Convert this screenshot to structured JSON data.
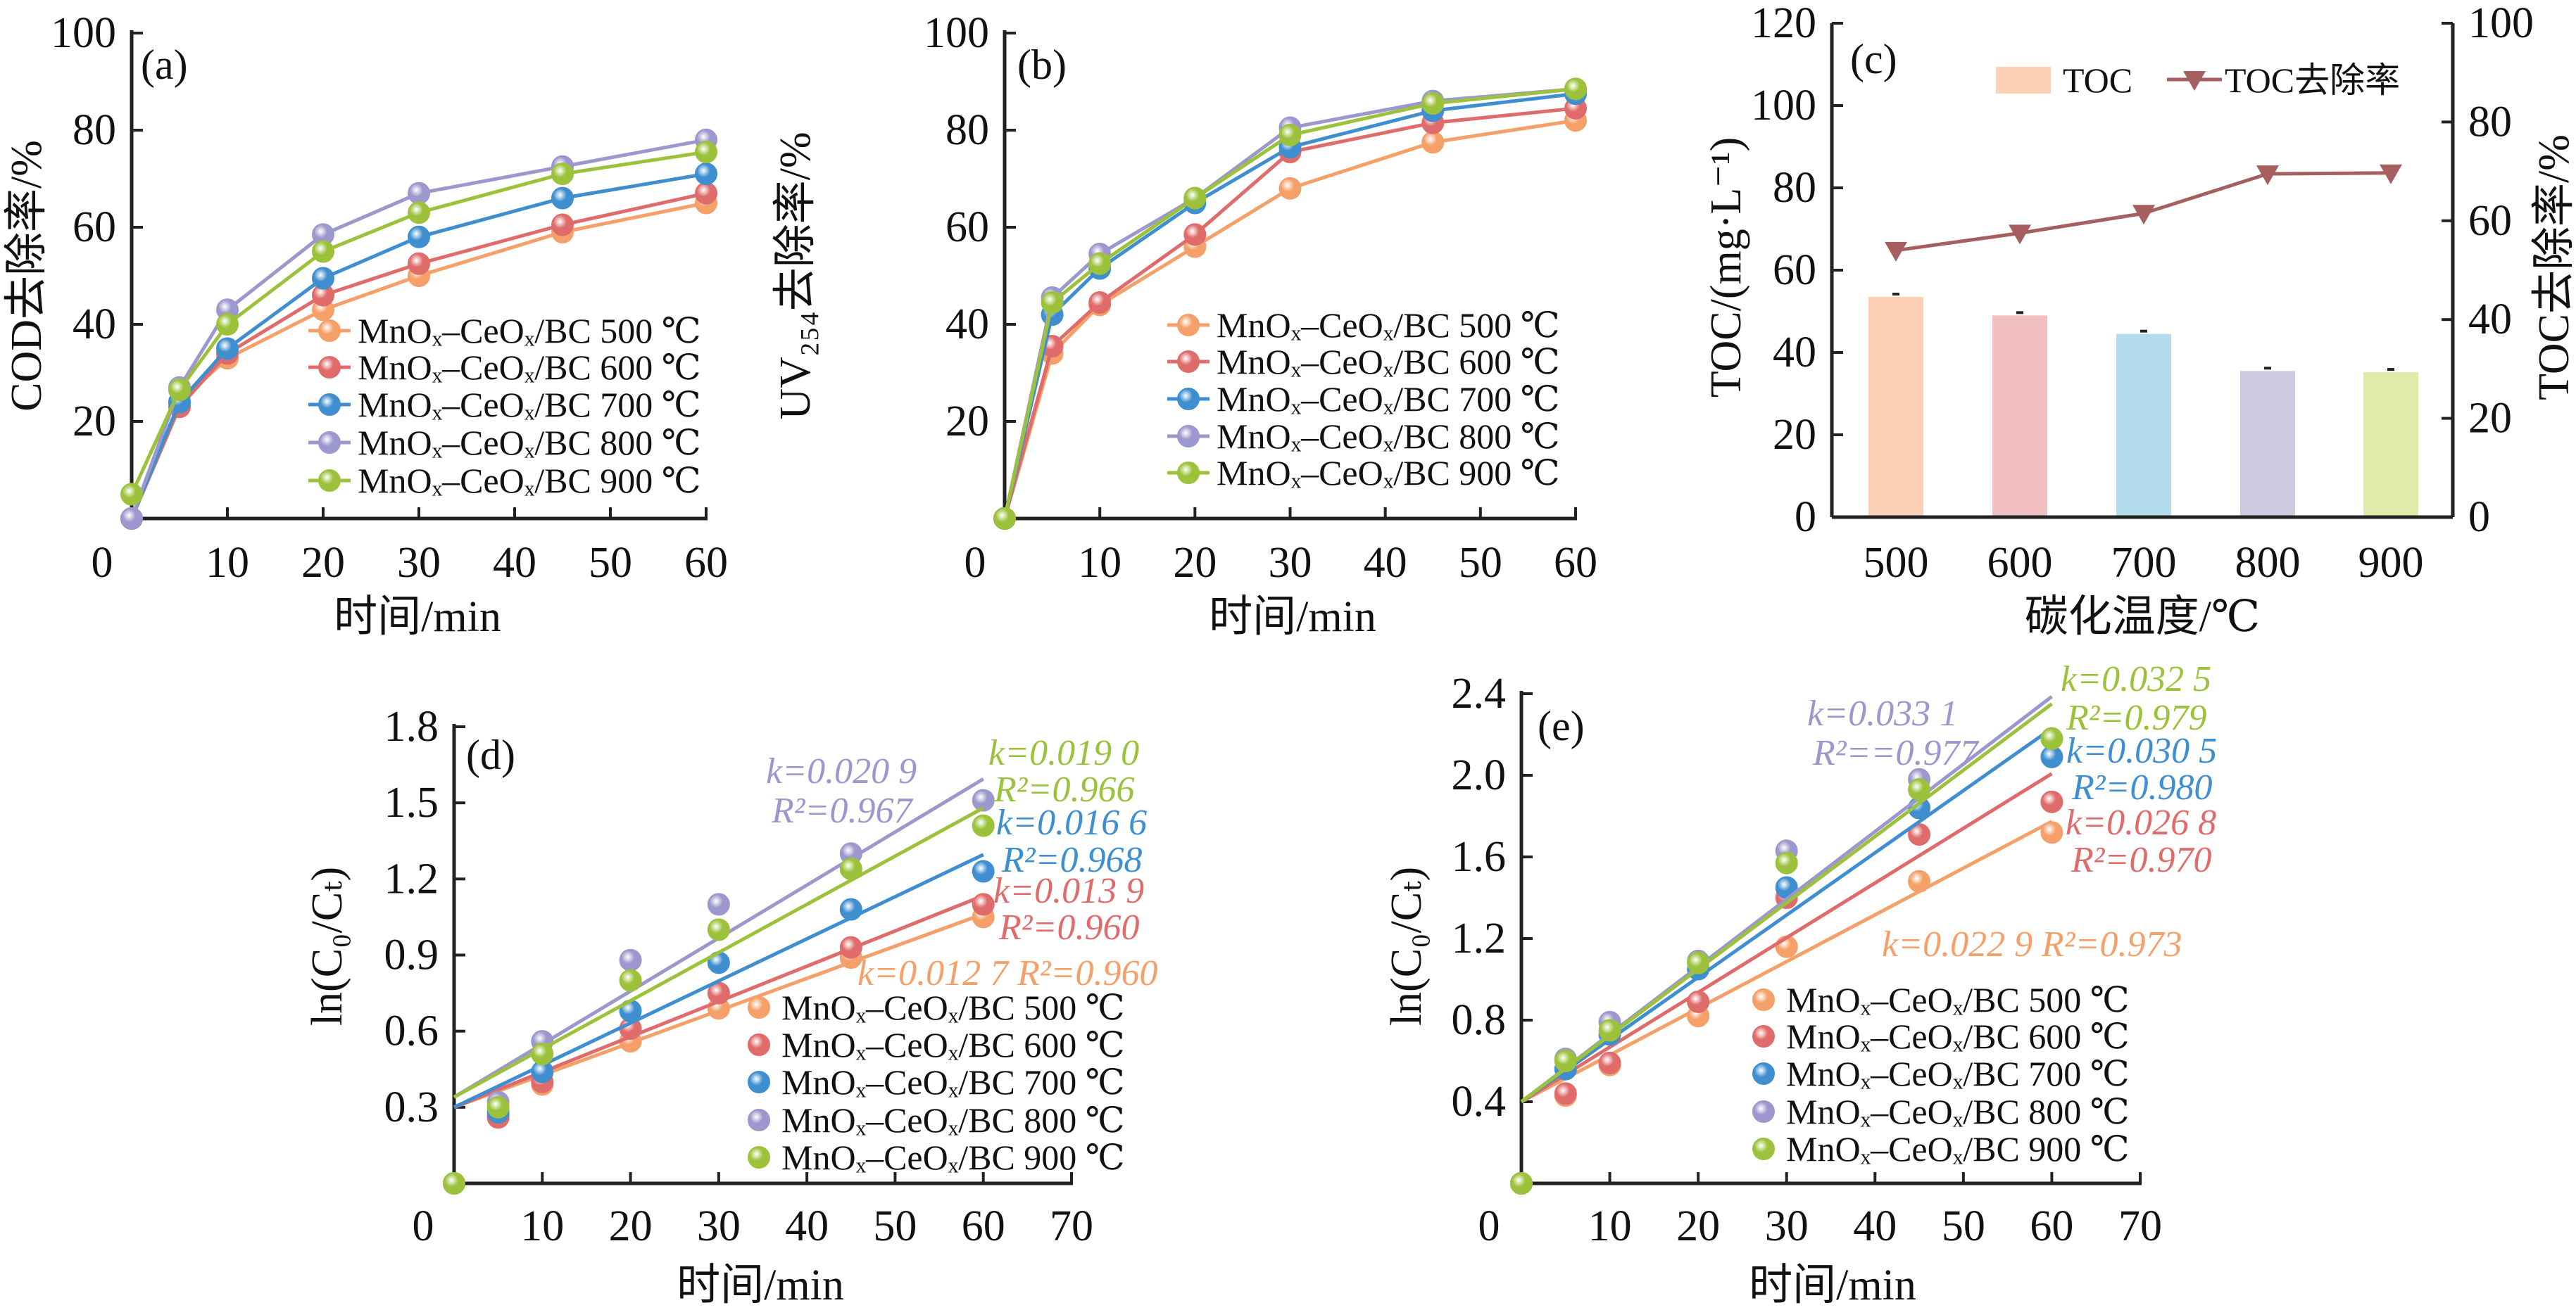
{
  "chart_data": [
    {
      "panel": "(a)",
      "type": "line",
      "xlabel": "时间/min",
      "ylabel": "COD去除率/%",
      "xlim": [
        0,
        60
      ],
      "ylim": [
        0,
        100
      ],
      "xticks": [
        0,
        10,
        20,
        30,
        40,
        50,
        60
      ],
      "yticks": [
        20,
        40,
        60,
        80,
        100
      ],
      "x": [
        0,
        5,
        10,
        20,
        30,
        45,
        60
      ],
      "legend": "lower-right",
      "series": [
        {
          "name": "MnOₓ–CeOₓ/BC 500 ℃",
          "color": "#F4A068",
          "values": [
            0,
            24,
            33,
            43,
            50,
            59,
            65
          ]
        },
        {
          "name": "MnOₓ–CeOₓ/BC 600 ℃",
          "color": "#E06B6B",
          "values": [
            0,
            23,
            34,
            46,
            52.5,
            60.5,
            67
          ]
        },
        {
          "name": "MnOₓ–CeOₓ/BC 700 ℃",
          "color": "#3F8FD0",
          "values": [
            0,
            24,
            35,
            49.5,
            58,
            66,
            71
          ]
        },
        {
          "name": "MnOₓ–CeOₓ/BC 800 ℃",
          "color": "#9C97CC",
          "values": [
            0,
            27,
            43,
            58.5,
            67,
            72.5,
            78
          ]
        },
        {
          "name": "MnOₓ–CeOₓ/BC 900 ℃",
          "color": "#9CC23C",
          "values": [
            5,
            26.5,
            40,
            55,
            63,
            71,
            75.5
          ]
        }
      ]
    },
    {
      "panel": "(b)",
      "type": "line",
      "xlabel": "时间/min",
      "ylabel": "UV₂₅₄去除率/%",
      "xlim": [
        0,
        60
      ],
      "ylim": [
        0,
        100
      ],
      "xticks": [
        0,
        10,
        20,
        30,
        40,
        50,
        60
      ],
      "yticks": [
        20,
        40,
        60,
        80,
        100
      ],
      "x": [
        0,
        5,
        10,
        20,
        30,
        45,
        60
      ],
      "legend": "lower-right",
      "series": [
        {
          "name": "MnOₓ–CeOₓ/BC 500 ℃",
          "color": "#F4A068",
          "values": [
            0,
            34,
            44,
            56,
            68,
            77.5,
            82
          ]
        },
        {
          "name": "MnOₓ–CeOₓ/BC 600 ℃",
          "color": "#E06B6B",
          "values": [
            0,
            35.5,
            44.5,
            58.5,
            75.5,
            81.5,
            84.5
          ]
        },
        {
          "name": "MnOₓ–CeOₓ/BC 700 ℃",
          "color": "#3F8FD0",
          "values": [
            0,
            42,
            51.5,
            65,
            76.5,
            84,
            87.5
          ]
        },
        {
          "name": "MnOₓ–CeOₓ/BC 800 ℃",
          "color": "#9C97CC",
          "values": [
            0,
            45.5,
            54.5,
            66,
            80.5,
            86,
            88.5
          ]
        },
        {
          "name": "MnOₓ–CeOₓ/BC 900 ℃",
          "color": "#9CC23C",
          "values": [
            0,
            44.5,
            52.5,
            66,
            79,
            85.5,
            88.5
          ]
        }
      ]
    },
    {
      "panel": "(c)",
      "type": "bar",
      "xlabel": "碳化温度/℃",
      "ylabel": "TOC/(mg·L⁻¹)",
      "ylabel_right": "TOC去除率/%",
      "categories": [
        "500",
        "600",
        "700",
        "800",
        "900"
      ],
      "ylim": [
        0,
        120
      ],
      "ylim_right": [
        0,
        100
      ],
      "yticks": [
        0,
        20,
        40,
        60,
        80,
        100,
        120
      ],
      "yticks_right": [
        0,
        20,
        40,
        60,
        80,
        100
      ],
      "legend": "top",
      "bars": {
        "name": "TOC",
        "values": [
          53.5,
          49,
          44.5,
          35.5,
          35.2
        ],
        "colors": [
          "#FBD0B6",
          "#F2C0C0",
          "#B2DCEC",
          "#CFCAE2",
          "#E2EAAA"
        ]
      },
      "line": {
        "name": "TOC去除率",
        "color": "#A65F5F",
        "marker": "triangle-down",
        "axis": "right",
        "values": [
          54,
          57.5,
          61.5,
          69.5,
          69.7
        ]
      }
    },
    {
      "panel": "(d)",
      "type": "scatter",
      "xlabel": "时间/min",
      "ylabel": "ln(C₀/Cₜ)",
      "xlim": [
        0,
        70
      ],
      "ylim": [
        0,
        1.8
      ],
      "xticks": [
        0,
        10,
        20,
        30,
        40,
        50,
        60,
        70
      ],
      "yticks": [
        0.3,
        0.6,
        0.9,
        1.2,
        1.5,
        1.8
      ],
      "x": [
        0,
        5,
        10,
        20,
        30,
        45,
        60
      ],
      "legend": "lower-right",
      "series": [
        {
          "name": "MnOₓ–CeOₓ/BC 500 ℃",
          "color": "#F4A068",
          "values": [
            0,
            0.27,
            0.39,
            0.56,
            0.69,
            0.89,
            1.05
          ],
          "fit": {
            "k": 0.0127,
            "intercept": 0.3
          },
          "k_label": "k=0.012 7",
          "r2_label": "R²=0.960"
        },
        {
          "name": "MnOₓ–CeOₓ/BC 600 ℃",
          "color": "#E06B6B",
          "values": [
            0,
            0.26,
            0.4,
            0.61,
            0.75,
            0.93,
            1.1
          ],
          "fit": {
            "k": 0.0139,
            "intercept": 0.3
          },
          "k_label": "k=0.013 9",
          "r2_label": "R²=0.960"
        },
        {
          "name": "MnOₓ–CeOₓ/BC 700 ℃",
          "color": "#3F8FD0",
          "values": [
            0,
            0.28,
            0.44,
            0.68,
            0.87,
            1.08,
            1.23
          ],
          "fit": {
            "k": 0.0166,
            "intercept": 0.3
          },
          "k_label": "k=0.016 6",
          "r2_label": "R²=0.968"
        },
        {
          "name": "MnOₓ–CeOₓ/BC 800 ℃",
          "color": "#9C97CC",
          "values": [
            0,
            0.32,
            0.56,
            0.88,
            1.1,
            1.3,
            1.51
          ],
          "fit": {
            "k": 0.0209,
            "intercept": 0.34
          },
          "k_label": "k=0.020 9",
          "r2_label": "R²=0.967"
        },
        {
          "name": "MnOₓ–CeOₓ/BC 900 ℃",
          "color": "#9CC23C",
          "values": [
            0,
            0.3,
            0.51,
            0.8,
            1.0,
            1.24,
            1.41
          ],
          "fit": {
            "k": 0.019,
            "intercept": 0.34
          },
          "k_label": "k=0.019 0",
          "r2_label": "R²=0.966"
        }
      ]
    },
    {
      "panel": "(e)",
      "type": "scatter",
      "xlabel": "时间/min",
      "ylabel": "ln(C₀/Cₜ)",
      "xlim": [
        0,
        70
      ],
      "ylim": [
        0,
        2.4
      ],
      "xticks": [
        0,
        10,
        20,
        30,
        40,
        50,
        60,
        70
      ],
      "yticks": [
        0.4,
        0.8,
        1.2,
        1.6,
        2.0,
        2.4
      ],
      "x": [
        0,
        5,
        10,
        20,
        30,
        45,
        60
      ],
      "legend": "lower-right",
      "series": [
        {
          "name": "MnOₓ–CeOₓ/BC 500 ℃",
          "color": "#F4A068",
          "values": [
            0,
            0.43,
            0.58,
            0.82,
            1.16,
            1.48,
            1.72
          ],
          "fit": {
            "k": 0.0229,
            "intercept": 0.4
          },
          "k_label": "k=0.022 9",
          "r2_label": "R²=0.973"
        },
        {
          "name": "MnOₓ–CeOₓ/BC 600 ℃",
          "color": "#E06B6B",
          "values": [
            0,
            0.44,
            0.59,
            0.89,
            1.4,
            1.71,
            1.87
          ],
          "fit": {
            "k": 0.0268,
            "intercept": 0.4
          },
          "k_label": "k=0.026 8",
          "r2_label": "R²=0.970"
        },
        {
          "name": "MnOₓ–CeOₓ/BC 700 ℃",
          "color": "#3F8FD0",
          "values": [
            0,
            0.56,
            0.73,
            1.05,
            1.45,
            1.84,
            2.09
          ],
          "fit": {
            "k": 0.0305,
            "intercept": 0.4
          },
          "k_label": "k=0.030 5",
          "r2_label": "R²=0.980"
        },
        {
          "name": "MnOₓ–CeOₓ/BC 800 ℃",
          "color": "#9C97CC",
          "values": [
            0,
            0.61,
            0.79,
            1.09,
            1.63,
            1.98,
            2.18
          ],
          "fit": {
            "k": 0.0331,
            "intercept": 0.4
          },
          "k_label": "k=0.033 1",
          "r2_label": "R²==0.977"
        },
        {
          "name": "MnOₓ–CeOₓ/BC 900 ℃",
          "color": "#9CC23C",
          "values": [
            0,
            0.6,
            0.75,
            1.08,
            1.57,
            1.93,
            2.18
          ],
          "fit": {
            "k": 0.0325,
            "intercept": 0.4
          },
          "k_label": "k=0.032 5",
          "r2_label": "R²=0.979"
        }
      ]
    }
  ]
}
